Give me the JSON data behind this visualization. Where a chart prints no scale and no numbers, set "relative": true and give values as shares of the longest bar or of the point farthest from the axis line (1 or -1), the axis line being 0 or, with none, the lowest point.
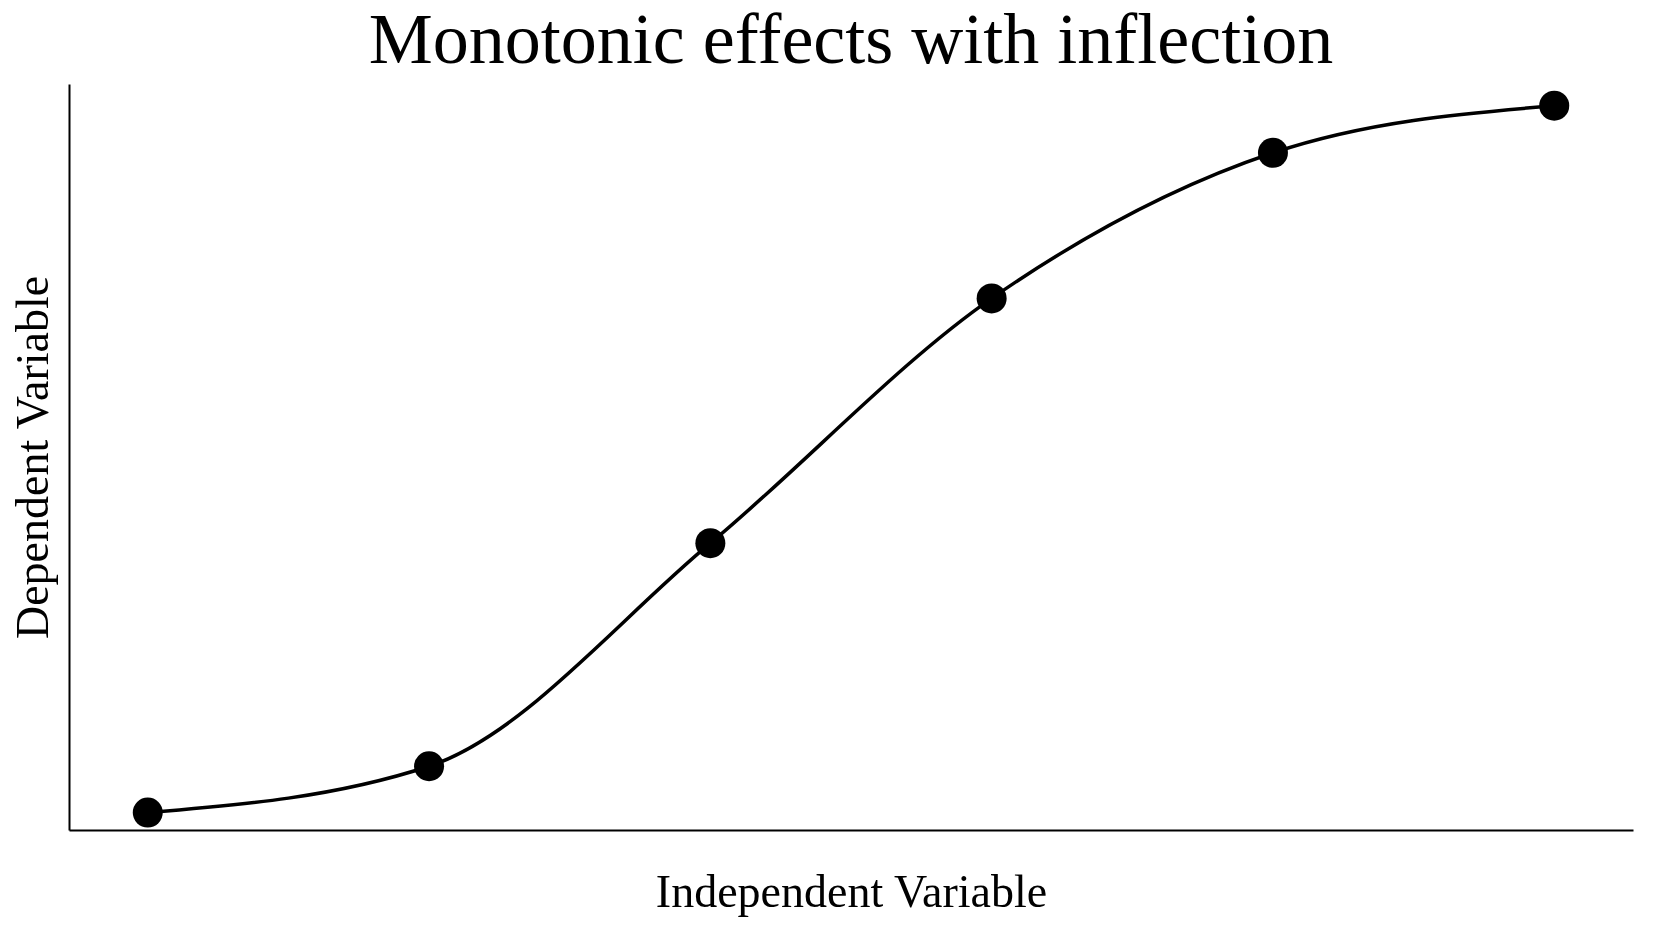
{
  "chart_data": {
    "type": "line",
    "title": "Monotonic effects with inflection",
    "xlabel": "Independent Variable",
    "ylabel": "Dependent Variable",
    "relative": true,
    "categories": [
      null,
      null,
      null,
      null,
      null,
      null
    ],
    "series": [
      {
        "color": "#000000",
        "values": [
          0.024,
          0.088,
          0.396,
          0.734,
          0.935,
          1
        ]
      }
    ],
    "marker": "circle",
    "line_style": "solid",
    "grid": false,
    "legend": false
  }
}
